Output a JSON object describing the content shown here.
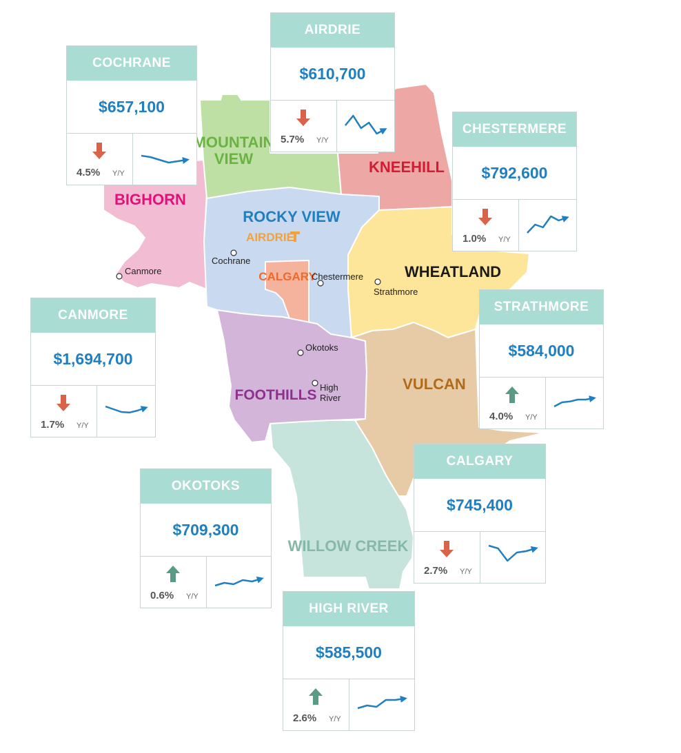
{
  "colors": {
    "card_header": "#a9dcd2",
    "price": "#1f7fc1",
    "arrow_down": "#d9624a",
    "arrow_up": "#5b9a84",
    "sparkline": "#1f7fc1"
  },
  "regions": [
    {
      "id": "bighorn",
      "label": "BIGHORN",
      "color": "#f2bdd2",
      "text_color": "#e0127a"
    },
    {
      "id": "mountain-view",
      "label": "MOUNTAIN\nVIEW",
      "color": "#bfe0a4",
      "text_color": "#69b441"
    },
    {
      "id": "kneehill",
      "label": "KNEEHILL",
      "color": "#eda8a6",
      "text_color": "#d11c35"
    },
    {
      "id": "rocky-view",
      "label": "ROCKY VIEW",
      "color": "#c8d9f0",
      "text_color": "#1f7fc1"
    },
    {
      "id": "calgary",
      "label": "CALGARY",
      "color": "#f5b39d",
      "text_color": "#ee6a2b"
    },
    {
      "id": "wheatland",
      "label": "WHEATLAND",
      "color": "#fde69a",
      "text_color": "#1a1a1a"
    },
    {
      "id": "foothills",
      "label": "FOOTHILLS",
      "color": "#d2b5d8",
      "text_color": "#8f2f8f"
    },
    {
      "id": "vulcan",
      "label": "VULCAN",
      "color": "#e7cba6",
      "text_color": "#b06a1a"
    },
    {
      "id": "willow-creek",
      "label": "WILLOW CREEK",
      "color": "#c6e4dc",
      "text_color": "#86b8a9"
    }
  ],
  "airdrie_label": {
    "label": "AIRDRIE",
    "text_color": "#f2a23a"
  },
  "towns": [
    "Canmore",
    "Cochrane",
    "Chestermere",
    "Strathmore",
    "Okotoks",
    "High\nRiver"
  ],
  "cards": [
    {
      "id": "cochrane",
      "name": "COCHRANE",
      "price": "$657,100",
      "direction": "down",
      "change": "4.5%",
      "period": "Y/Y",
      "trend": [
        0.55,
        0.5,
        0.4,
        0.3,
        0.35,
        0.4
      ]
    },
    {
      "id": "airdrie",
      "name": "AIRDRIE",
      "price": "$610,700",
      "direction": "down",
      "change": "5.7%",
      "period": "Y/Y",
      "trend": [
        0.45,
        0.8,
        0.35,
        0.55,
        0.15,
        0.3
      ]
    },
    {
      "id": "chestermere",
      "name": "CHESTERMERE",
      "price": "$792,600",
      "direction": "down",
      "change": "1.0%",
      "period": "Y/Y",
      "trend": [
        0.15,
        0.45,
        0.35,
        0.75,
        0.6,
        0.7
      ]
    },
    {
      "id": "canmore",
      "name": "CANMORE",
      "price": "$1,694,700",
      "direction": "down",
      "change": "1.7%",
      "period": "Y/Y",
      "trend": [
        0.6,
        0.5,
        0.4,
        0.38,
        0.45,
        0.55
      ]
    },
    {
      "id": "strathmore",
      "name": "STRATHMORE",
      "price": "$584,000",
      "direction": "up",
      "change": "4.0%",
      "period": "Y/Y",
      "trend": [
        0.3,
        0.45,
        0.48,
        0.55,
        0.55,
        0.6
      ]
    },
    {
      "id": "calgary",
      "name": "CALGARY",
      "price": "$745,400",
      "direction": "down",
      "change": "2.7%",
      "period": "Y/Y",
      "trend": [
        0.85,
        0.75,
        0.3,
        0.6,
        0.65,
        0.75
      ]
    },
    {
      "id": "okotoks",
      "name": "OKOTOKS",
      "price": "$709,300",
      "direction": "up",
      "change": "0.6%",
      "period": "Y/Y",
      "trend": [
        0.3,
        0.4,
        0.35,
        0.5,
        0.45,
        0.55
      ]
    },
    {
      "id": "high-river",
      "name": "HIGH RIVER",
      "price": "$585,500",
      "direction": "up",
      "change": "2.6%",
      "period": "Y/Y",
      "trend": [
        0.3,
        0.4,
        0.35,
        0.6,
        0.6,
        0.65
      ]
    }
  ]
}
